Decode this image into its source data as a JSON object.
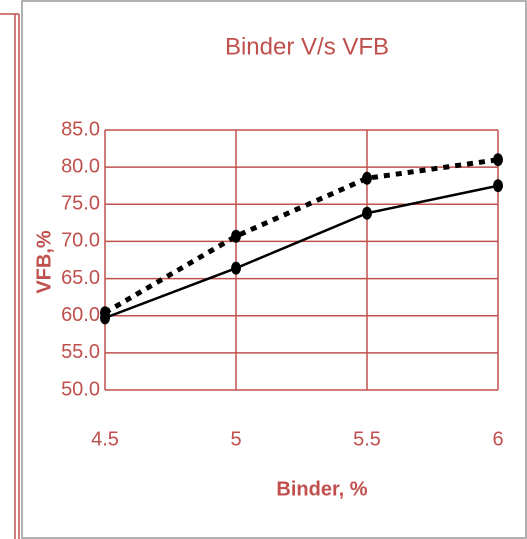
{
  "chart_data": {
    "type": "line",
    "title": "Binder V/s VFB",
    "x_label": "Binder, %",
    "y_label": "VFB,%",
    "x": [
      4.5,
      5,
      5.5,
      6
    ],
    "series": [
      {
        "color": "#000000",
        "style": "solid",
        "values": [
          59.7,
          66.4,
          73.8,
          77.5
        ]
      },
      {
        "color": "#000000",
        "style": "dotted",
        "values": [
          60.4,
          70.7,
          78.5,
          81.0
        ]
      }
    ],
    "xlim": [
      4.5,
      6
    ],
    "xticks": [
      4.5,
      5,
      5.5,
      6
    ],
    "ylim": [
      50,
      85
    ],
    "yticks": [
      {
        "value": 50,
        "label": "50.0"
      },
      {
        "value": 55,
        "label": "55.0"
      },
      {
        "value": 60,
        "label": "60.0"
      },
      {
        "value": 65,
        "label": "65.0"
      },
      {
        "value": 70,
        "label": "70.0"
      },
      {
        "value": 75,
        "label": "75.0"
      },
      {
        "value": 80,
        "label": "80.0"
      },
      {
        "value": 85,
        "label": "85.0"
      }
    ],
    "grid": true,
    "grid_color": "#c0504d",
    "text_color": "#c0504d"
  }
}
